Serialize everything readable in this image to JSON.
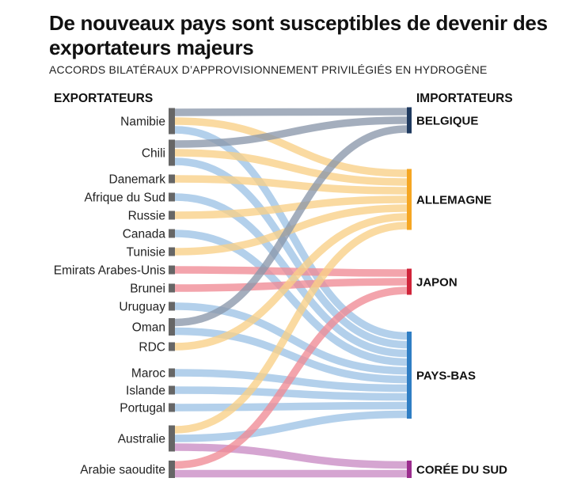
{
  "title": "De nouveaux pays sont susceptibles de devenir des exportateurs majeurs",
  "subtitle": "ACCORDS BILATÉRAUX D’APPROVISIONNEMENT PRIVILÉGIÉS EN HYDROGÈNE",
  "chart_data": {
    "type": "sankey",
    "left_header": "EXPORTATEURS",
    "right_header": "IMPORTATEURS",
    "exporters": [
      "Namibie",
      "Chili",
      "Danemark",
      "Afrique du Sud",
      "Russie",
      "Canada",
      "Tunisie",
      "Emirats Arabes-Unis",
      "Brunei",
      "Uruguay",
      "Oman",
      "RDC",
      "Maroc",
      "Islande",
      "Portugal",
      "Australie",
      "Arabie saoudite"
    ],
    "importers": [
      {
        "name": "BELGIQUE",
        "color": "#1f3a5f"
      },
      {
        "name": "ALLEMAGNE",
        "color": "#f5a623"
      },
      {
        "name": "JAPON",
        "color": "#d0243a"
      },
      {
        "name": "PAYS-BAS",
        "color": "#2f7ec4"
      },
      {
        "name": "CORÉE DU SUD",
        "color": "#9b2d8e"
      }
    ],
    "link_colors": {
      "BELGIQUE": "#8a97ab",
      "ALLEMAGNE": "#f9cf87",
      "JAPON": "#ef8a95",
      "PAYS-BAS": "#9dc3e6",
      "CORÉE DU SUD": "#c98cc4"
    },
    "links": [
      {
        "source": "Namibie",
        "target": "BELGIQUE",
        "value": 1
      },
      {
        "source": "Namibie",
        "target": "ALLEMAGNE",
        "value": 1
      },
      {
        "source": "Namibie",
        "target": "PAYS-BAS",
        "value": 1
      },
      {
        "source": "Chili",
        "target": "BELGIQUE",
        "value": 1
      },
      {
        "source": "Chili",
        "target": "ALLEMAGNE",
        "value": 1
      },
      {
        "source": "Chili",
        "target": "PAYS-BAS",
        "value": 1
      },
      {
        "source": "Danemark",
        "target": "ALLEMAGNE",
        "value": 1
      },
      {
        "source": "Afrique du Sud",
        "target": "PAYS-BAS",
        "value": 1
      },
      {
        "source": "Russie",
        "target": "ALLEMAGNE",
        "value": 1
      },
      {
        "source": "Canada",
        "target": "PAYS-BAS",
        "value": 1
      },
      {
        "source": "Tunisie",
        "target": "ALLEMAGNE",
        "value": 1
      },
      {
        "source": "Emirats Arabes-Unis",
        "target": "JAPON",
        "value": 1
      },
      {
        "source": "Brunei",
        "target": "JAPON",
        "value": 1
      },
      {
        "source": "Uruguay",
        "target": "PAYS-BAS",
        "value": 1
      },
      {
        "source": "Oman",
        "target": "BELGIQUE",
        "value": 1
      },
      {
        "source": "Oman",
        "target": "PAYS-BAS",
        "value": 1
      },
      {
        "source": "RDC",
        "target": "ALLEMAGNE",
        "value": 1
      },
      {
        "source": "Maroc",
        "target": "PAYS-BAS",
        "value": 1
      },
      {
        "source": "Islande",
        "target": "PAYS-BAS",
        "value": 1
      },
      {
        "source": "Portugal",
        "target": "PAYS-BAS",
        "value": 1
      },
      {
        "source": "Australie",
        "target": "ALLEMAGNE",
        "value": 1
      },
      {
        "source": "Australie",
        "target": "PAYS-BAS",
        "value": 1
      },
      {
        "source": "Australie",
        "target": "CORÉE DU SUD",
        "value": 1
      },
      {
        "source": "Arabie saoudite",
        "target": "JAPON",
        "value": 1
      },
      {
        "source": "Arabie saoudite",
        "target": "CORÉE DU SUD",
        "value": 1
      }
    ]
  }
}
